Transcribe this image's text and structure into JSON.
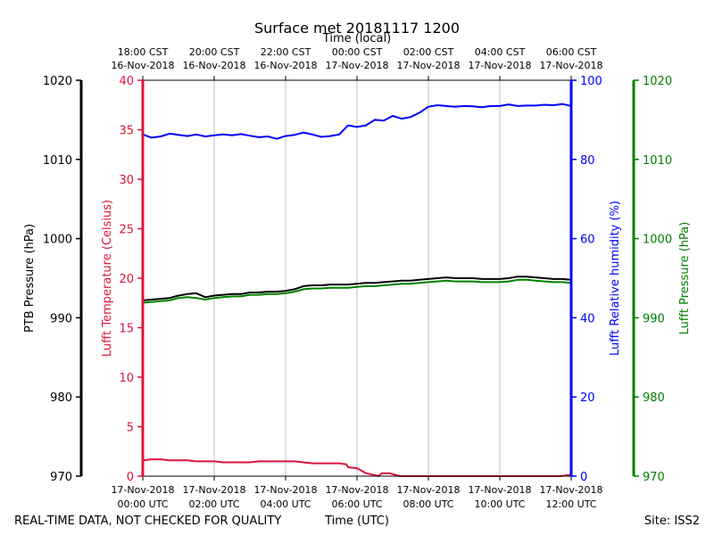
{
  "chart_data": {
    "type": "line",
    "title": "Surface met 20181117 1200",
    "top_axis_label": "Time (local)",
    "bottom_axis_label": "Time (UTC)",
    "footer_left": "REAL-TIME DATA, NOT CHECKED FOR QUALITY",
    "footer_right": "Site: ISS2",
    "x_range_hours": [
      0,
      12
    ],
    "grid": true,
    "bottom_ticks": [
      {
        "h": 0,
        "l1": "17-Nov-2018",
        "l2": "00:00 UTC"
      },
      {
        "h": 2,
        "l1": "17-Nov-2018",
        "l2": "02:00 UTC"
      },
      {
        "h": 4,
        "l1": "17-Nov-2018",
        "l2": "04:00 UTC"
      },
      {
        "h": 6,
        "l1": "17-Nov-2018",
        "l2": "06:00 UTC"
      },
      {
        "h": 8,
        "l1": "17-Nov-2018",
        "l2": "08:00 UTC"
      },
      {
        "h": 10,
        "l1": "17-Nov-2018",
        "l2": "10:00 UTC"
      },
      {
        "h": 12,
        "l1": "17-Nov-2018",
        "l2": "12:00 UTC"
      }
    ],
    "top_ticks": [
      {
        "h": 0,
        "l1": "18:00 CST",
        "l2": "16-Nov-2018"
      },
      {
        "h": 2,
        "l1": "20:00 CST",
        "l2": "16-Nov-2018"
      },
      {
        "h": 4,
        "l1": "22:00 CST",
        "l2": "16-Nov-2018"
      },
      {
        "h": 6,
        "l1": "00:00 CST",
        "l2": "17-Nov-2018"
      },
      {
        "h": 8,
        "l1": "02:00 CST",
        "l2": "17-Nov-2018"
      },
      {
        "h": 10,
        "l1": "04:00 CST",
        "l2": "17-Nov-2018"
      },
      {
        "h": 12,
        "l1": "06:00 CST",
        "l2": "17-Nov-2018"
      }
    ],
    "axes": [
      {
        "id": "ptb",
        "label": "PTB Pressure (hPa)",
        "color": "#000000",
        "range": [
          970,
          1020
        ],
        "ticks": [
          970,
          980,
          990,
          1000,
          1010,
          1020
        ]
      },
      {
        "id": "temp",
        "label": "Lufft Temperature (Celsius)",
        "color": "#dc143c",
        "range": [
          0,
          40
        ],
        "ticks": [
          0,
          5,
          10,
          15,
          20,
          25,
          30,
          35,
          40
        ]
      },
      {
        "id": "rh",
        "label": "Lufft Relative humidity (%)",
        "color": "#0000ff",
        "range": [
          0,
          100
        ],
        "ticks": [
          0,
          20,
          40,
          60,
          80,
          100
        ]
      },
      {
        "id": "lp",
        "label": "Lufft Pressure (hPa)",
        "color": "#008000",
        "range": [
          970,
          1020
        ],
        "ticks": [
          970,
          980,
          990,
          1000,
          1010,
          1020
        ]
      }
    ],
    "series": [
      {
        "name": "Lufft Relative humidity",
        "axis": "rh",
        "color": "#0000ff",
        "points": [
          [
            0,
            86.3
          ],
          [
            0.25,
            85.5
          ],
          [
            0.5,
            85.8
          ],
          [
            0.75,
            86.5
          ],
          [
            1,
            86.2
          ],
          [
            1.25,
            85.9
          ],
          [
            1.5,
            86.3
          ],
          [
            1.75,
            85.8
          ],
          [
            2,
            86.1
          ],
          [
            2.25,
            86.3
          ],
          [
            2.5,
            86.1
          ],
          [
            2.75,
            86.4
          ],
          [
            3,
            86.0
          ],
          [
            3.25,
            85.6
          ],
          [
            3.5,
            85.8
          ],
          [
            3.75,
            85.2
          ],
          [
            4,
            85.9
          ],
          [
            4.25,
            86.2
          ],
          [
            4.5,
            86.8
          ],
          [
            4.75,
            86.3
          ],
          [
            5,
            85.7
          ],
          [
            5.25,
            85.9
          ],
          [
            5.5,
            86.3
          ],
          [
            5.75,
            88.6
          ],
          [
            6,
            88.2
          ],
          [
            6.25,
            88.6
          ],
          [
            6.5,
            90.0
          ],
          [
            6.75,
            89.8
          ],
          [
            7,
            91.0
          ],
          [
            7.25,
            90.3
          ],
          [
            7.5,
            90.7
          ],
          [
            7.75,
            91.8
          ],
          [
            8,
            93.3
          ],
          [
            8.25,
            93.7
          ],
          [
            8.5,
            93.5
          ],
          [
            8.75,
            93.3
          ],
          [
            9,
            93.5
          ],
          [
            9.25,
            93.4
          ],
          [
            9.5,
            93.2
          ],
          [
            9.75,
            93.5
          ],
          [
            10,
            93.5
          ],
          [
            10.25,
            93.9
          ],
          [
            10.5,
            93.5
          ],
          [
            10.75,
            93.6
          ],
          [
            11,
            93.6
          ],
          [
            11.25,
            93.8
          ],
          [
            11.5,
            93.7
          ],
          [
            11.75,
            94.0
          ],
          [
            12,
            93.5
          ]
        ]
      },
      {
        "name": "PTB Pressure",
        "axis": "ptb",
        "color": "#000000",
        "points": [
          [
            0,
            992.2
          ],
          [
            0.25,
            992.3
          ],
          [
            0.5,
            992.4
          ],
          [
            0.75,
            992.5
          ],
          [
            1,
            992.8
          ],
          [
            1.25,
            993.0
          ],
          [
            1.5,
            993.1
          ],
          [
            1.75,
            992.6
          ],
          [
            2,
            992.8
          ],
          [
            2.25,
            992.9
          ],
          [
            2.5,
            993.0
          ],
          [
            2.75,
            993.0
          ],
          [
            3,
            993.2
          ],
          [
            3.25,
            993.2
          ],
          [
            3.5,
            993.3
          ],
          [
            3.75,
            993.3
          ],
          [
            4,
            993.4
          ],
          [
            4.25,
            993.6
          ],
          [
            4.5,
            994.0
          ],
          [
            4.75,
            994.1
          ],
          [
            5,
            994.1
          ],
          [
            5.25,
            994.2
          ],
          [
            5.5,
            994.2
          ],
          [
            5.75,
            994.2
          ],
          [
            6,
            994.3
          ],
          [
            6.25,
            994.4
          ],
          [
            6.5,
            994.4
          ],
          [
            6.75,
            994.5
          ],
          [
            7,
            994.6
          ],
          [
            7.25,
            994.7
          ],
          [
            7.5,
            994.7
          ],
          [
            7.75,
            994.8
          ],
          [
            8,
            994.9
          ],
          [
            8.25,
            995.0
          ],
          [
            8.5,
            995.1
          ],
          [
            8.75,
            995.0
          ],
          [
            9,
            995.0
          ],
          [
            9.25,
            995.0
          ],
          [
            9.5,
            994.9
          ],
          [
            9.75,
            994.9
          ],
          [
            10,
            994.9
          ],
          [
            10.25,
            995.0
          ],
          [
            10.5,
            995.2
          ],
          [
            10.75,
            995.2
          ],
          [
            11,
            995.1
          ],
          [
            11.25,
            995.0
          ],
          [
            11.5,
            994.9
          ],
          [
            11.75,
            994.9
          ],
          [
            12,
            994.8
          ]
        ]
      },
      {
        "name": "Lufft Pressure",
        "axis": "lp",
        "color": "#008000",
        "points": [
          [
            0,
            991.9
          ],
          [
            0.25,
            992.0
          ],
          [
            0.5,
            992.1
          ],
          [
            0.75,
            992.2
          ],
          [
            1,
            992.5
          ],
          [
            1.25,
            992.6
          ],
          [
            1.5,
            992.5
          ],
          [
            1.75,
            992.3
          ],
          [
            2,
            992.5
          ],
          [
            2.25,
            992.6
          ],
          [
            2.5,
            992.7
          ],
          [
            2.75,
            992.7
          ],
          [
            3,
            992.9
          ],
          [
            3.25,
            992.9
          ],
          [
            3.5,
            993.0
          ],
          [
            3.75,
            993.0
          ],
          [
            4,
            993.1
          ],
          [
            4.25,
            993.3
          ],
          [
            4.5,
            993.6
          ],
          [
            4.75,
            993.7
          ],
          [
            5,
            993.7
          ],
          [
            5.25,
            993.8
          ],
          [
            5.5,
            993.8
          ],
          [
            5.75,
            993.8
          ],
          [
            6,
            993.9
          ],
          [
            6.25,
            994.0
          ],
          [
            6.5,
            994.0
          ],
          [
            6.75,
            994.1
          ],
          [
            7,
            994.2
          ],
          [
            7.25,
            994.3
          ],
          [
            7.5,
            994.3
          ],
          [
            7.75,
            994.4
          ],
          [
            8,
            994.5
          ],
          [
            8.25,
            994.6
          ],
          [
            8.5,
            994.7
          ],
          [
            8.75,
            994.6
          ],
          [
            9,
            994.6
          ],
          [
            9.25,
            994.6
          ],
          [
            9.5,
            994.5
          ],
          [
            9.75,
            994.5
          ],
          [
            10,
            994.5
          ],
          [
            10.25,
            994.6
          ],
          [
            10.5,
            994.8
          ],
          [
            10.75,
            994.8
          ],
          [
            11,
            994.7
          ],
          [
            11.25,
            994.6
          ],
          [
            11.5,
            994.5
          ],
          [
            11.75,
            994.5
          ],
          [
            12,
            994.4
          ]
        ]
      },
      {
        "name": "Lufft Temperature",
        "axis": "temp",
        "color": "#dc143c",
        "points": [
          [
            0,
            1.6
          ],
          [
            0.25,
            1.7
          ],
          [
            0.5,
            1.7
          ],
          [
            0.75,
            1.6
          ],
          [
            1,
            1.6
          ],
          [
            1.25,
            1.6
          ],
          [
            1.5,
            1.5
          ],
          [
            1.75,
            1.5
          ],
          [
            2,
            1.5
          ],
          [
            2.25,
            1.4
          ],
          [
            2.5,
            1.4
          ],
          [
            2.75,
            1.4
          ],
          [
            3,
            1.4
          ],
          [
            3.25,
            1.5
          ],
          [
            3.5,
            1.5
          ],
          [
            3.75,
            1.5
          ],
          [
            4,
            1.5
          ],
          [
            4.25,
            1.5
          ],
          [
            4.5,
            1.4
          ],
          [
            4.75,
            1.3
          ],
          [
            5,
            1.3
          ],
          [
            5.25,
            1.3
          ],
          [
            5.5,
            1.3
          ],
          [
            5.7,
            1.2
          ],
          [
            5.75,
            0.9
          ],
          [
            6,
            0.8
          ],
          [
            6.1,
            0.6
          ],
          [
            6.25,
            0.3
          ],
          [
            6.5,
            0.1
          ],
          [
            6.6,
            0.0
          ],
          [
            6.7,
            0.3
          ],
          [
            6.9,
            0.3
          ],
          [
            7.1,
            0.1
          ],
          [
            7.2,
            0.0
          ],
          [
            11.7,
            0.0
          ],
          [
            11.9,
            0.1
          ],
          [
            12,
            0.1
          ]
        ]
      }
    ]
  }
}
